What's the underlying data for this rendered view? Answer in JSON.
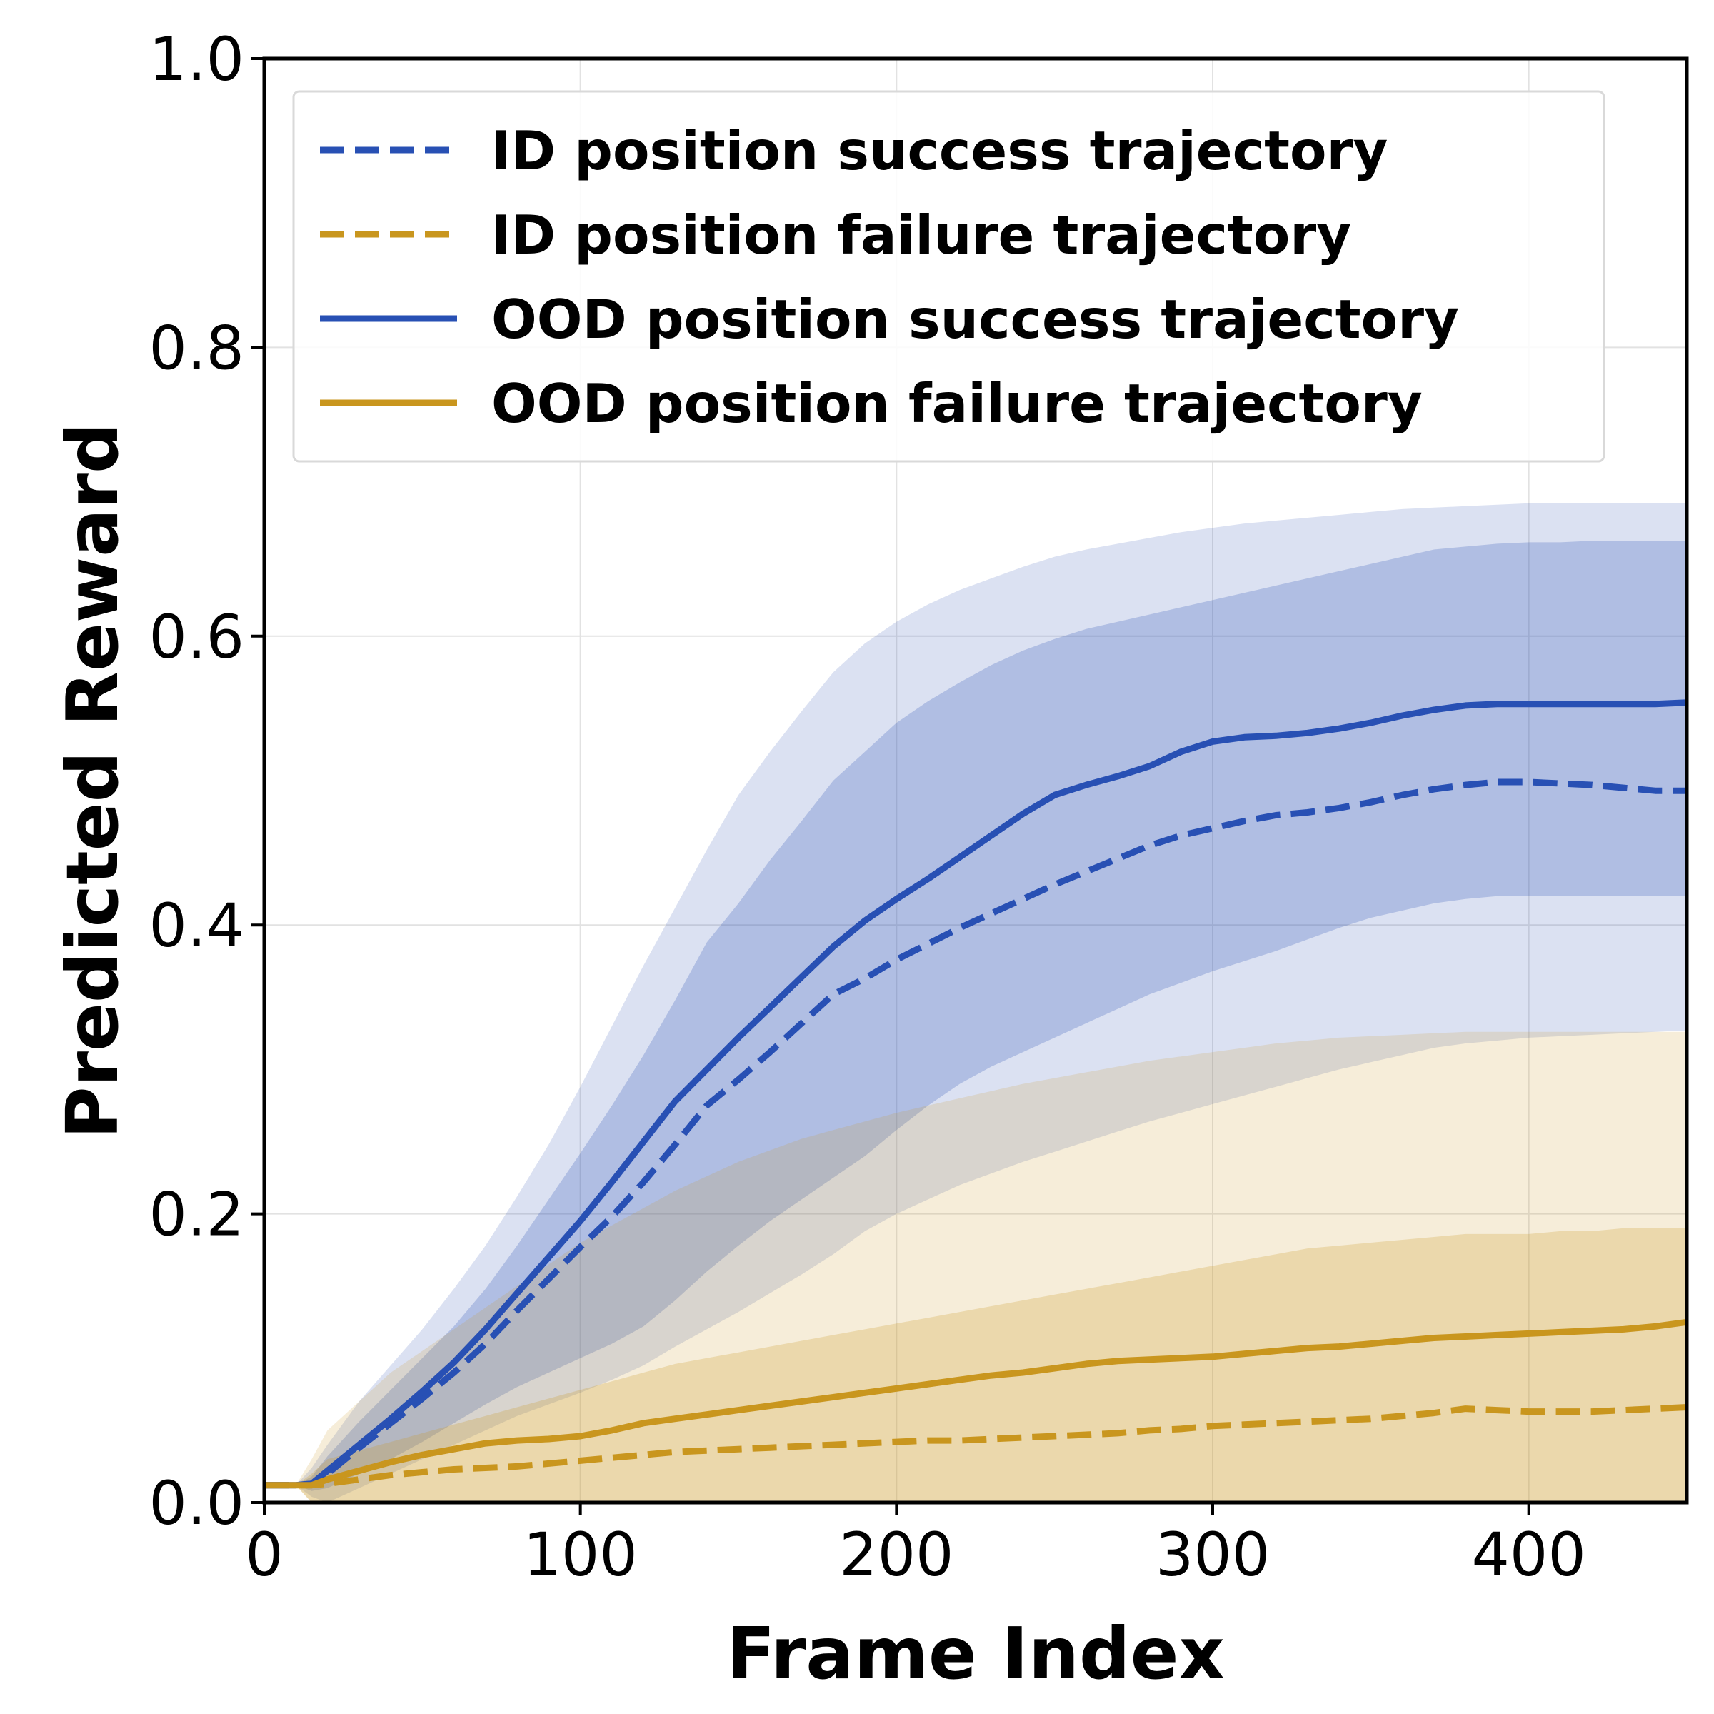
{
  "chart_data": {
    "type": "line",
    "xlabel": "Frame Index",
    "ylabel": "Predicted Reward",
    "xlim": [
      0,
      450
    ],
    "ylim": [
      0.0,
      1.0
    ],
    "xticks": [
      0,
      100,
      200,
      300,
      400
    ],
    "yticks": [
      0.0,
      0.2,
      0.4,
      0.6,
      0.8,
      1.0
    ],
    "xtick_labels": [
      "0",
      "100",
      "200",
      "300",
      "400"
    ],
    "ytick_labels": [
      "0.0",
      "0.2",
      "0.4",
      "0.6",
      "0.8",
      "1.0"
    ],
    "grid": true,
    "legend_position": "upper-left",
    "x": [
      0,
      10,
      15,
      20,
      30,
      40,
      50,
      60,
      70,
      80,
      90,
      100,
      110,
      120,
      130,
      140,
      150,
      160,
      170,
      180,
      190,
      200,
      210,
      220,
      230,
      240,
      250,
      260,
      270,
      280,
      290,
      300,
      310,
      320,
      330,
      340,
      350,
      360,
      370,
      380,
      390,
      400,
      410,
      420,
      430,
      440,
      450
    ],
    "series": [
      {
        "name": "ID position success trajectory",
        "color": "#2850b4",
        "style": "dashed",
        "values": [
          0.012,
          0.012,
          0.013,
          0.02,
          0.038,
          0.055,
          0.072,
          0.09,
          0.11,
          0.133,
          0.155,
          0.177,
          0.198,
          0.222,
          0.248,
          0.275,
          0.293,
          0.312,
          0.332,
          0.352,
          0.363,
          0.376,
          0.387,
          0.398,
          0.408,
          0.418,
          0.428,
          0.437,
          0.446,
          0.455,
          0.462,
          0.467,
          0.472,
          0.476,
          0.478,
          0.481,
          0.485,
          0.49,
          0.494,
          0.497,
          0.499,
          0.499,
          0.498,
          0.497,
          0.495,
          0.493,
          0.493
        ],
        "band_inner": [
          [
            0.012,
            0.012
          ],
          [
            0.012,
            0.012
          ],
          [
            0.008,
            0.018
          ],
          [
            0.01,
            0.032
          ],
          [
            0.02,
            0.056
          ],
          [
            0.03,
            0.078
          ],
          [
            0.042,
            0.1
          ],
          [
            0.055,
            0.122
          ],
          [
            0.068,
            0.148
          ],
          [
            0.08,
            0.178
          ],
          [
            0.09,
            0.21
          ],
          [
            0.1,
            0.242
          ],
          [
            0.11,
            0.275
          ],
          [
            0.122,
            0.31
          ],
          [
            0.14,
            0.348
          ],
          [
            0.16,
            0.388
          ],
          [
            0.178,
            0.415
          ],
          [
            0.195,
            0.445
          ],
          [
            0.21,
            0.472
          ],
          [
            0.225,
            0.5
          ],
          [
            0.24,
            0.52
          ],
          [
            0.258,
            0.54
          ],
          [
            0.275,
            0.555
          ],
          [
            0.29,
            0.568
          ],
          [
            0.302,
            0.58
          ],
          [
            0.312,
            0.59
          ],
          [
            0.322,
            0.598
          ],
          [
            0.332,
            0.605
          ],
          [
            0.342,
            0.61
          ],
          [
            0.352,
            0.615
          ],
          [
            0.36,
            0.62
          ],
          [
            0.368,
            0.625
          ],
          [
            0.375,
            0.63
          ],
          [
            0.382,
            0.635
          ],
          [
            0.39,
            0.64
          ],
          [
            0.398,
            0.645
          ],
          [
            0.405,
            0.65
          ],
          [
            0.41,
            0.655
          ],
          [
            0.415,
            0.66
          ],
          [
            0.418,
            0.662
          ],
          [
            0.42,
            0.664
          ],
          [
            0.42,
            0.665
          ],
          [
            0.42,
            0.665
          ],
          [
            0.42,
            0.666
          ],
          [
            0.42,
            0.666
          ],
          [
            0.42,
            0.666
          ],
          [
            0.42,
            0.666
          ]
        ],
        "band_outer": [
          [
            0.012,
            0.012
          ],
          [
            0.012,
            0.012
          ],
          [
            0.004,
            0.024
          ],
          [
            0.0,
            0.04
          ],
          [
            0.01,
            0.07
          ],
          [
            0.02,
            0.095
          ],
          [
            0.03,
            0.12
          ],
          [
            0.04,
            0.148
          ],
          [
            0.05,
            0.178
          ],
          [
            0.06,
            0.212
          ],
          [
            0.068,
            0.248
          ],
          [
            0.076,
            0.288
          ],
          [
            0.085,
            0.33
          ],
          [
            0.095,
            0.372
          ],
          [
            0.108,
            0.412
          ],
          [
            0.12,
            0.452
          ],
          [
            0.132,
            0.49
          ],
          [
            0.145,
            0.52
          ],
          [
            0.158,
            0.548
          ],
          [
            0.172,
            0.575
          ],
          [
            0.188,
            0.595
          ],
          [
            0.2,
            0.61
          ],
          [
            0.21,
            0.622
          ],
          [
            0.22,
            0.632
          ],
          [
            0.228,
            0.64
          ],
          [
            0.236,
            0.648
          ],
          [
            0.243,
            0.655
          ],
          [
            0.25,
            0.66
          ],
          [
            0.257,
            0.664
          ],
          [
            0.264,
            0.668
          ],
          [
            0.27,
            0.672
          ],
          [
            0.276,
            0.675
          ],
          [
            0.282,
            0.678
          ],
          [
            0.288,
            0.68
          ],
          [
            0.294,
            0.682
          ],
          [
            0.3,
            0.684
          ],
          [
            0.305,
            0.686
          ],
          [
            0.31,
            0.688
          ],
          [
            0.315,
            0.689
          ],
          [
            0.318,
            0.69
          ],
          [
            0.32,
            0.691
          ],
          [
            0.322,
            0.692
          ],
          [
            0.323,
            0.692
          ],
          [
            0.324,
            0.692
          ],
          [
            0.325,
            0.692
          ],
          [
            0.326,
            0.692
          ],
          [
            0.327,
            0.692
          ]
        ]
      },
      {
        "name": "ID position failure trajectory",
        "color": "#c9961e",
        "style": "dashed",
        "values": [
          0.012,
          0.012,
          0.012,
          0.013,
          0.016,
          0.019,
          0.021,
          0.023,
          0.024,
          0.025,
          0.027,
          0.029,
          0.031,
          0.033,
          0.035,
          0.036,
          0.037,
          0.038,
          0.039,
          0.04,
          0.041,
          0.042,
          0.043,
          0.043,
          0.044,
          0.045,
          0.046,
          0.047,
          0.048,
          0.05,
          0.051,
          0.053,
          0.054,
          0.055,
          0.056,
          0.057,
          0.058,
          0.06,
          0.062,
          0.065,
          0.064,
          0.063,
          0.063,
          0.063,
          0.064,
          0.065,
          0.066
        ],
        "band_inner": [
          [
            0.012,
            0.012
          ],
          [
            0.012,
            0.012
          ],
          [
            0.0,
            0.02
          ],
          [
            0.0,
            0.03
          ],
          [
            0.0,
            0.036
          ],
          [
            0.0,
            0.042
          ],
          [
            0.0,
            0.048
          ],
          [
            0.0,
            0.054
          ],
          [
            0.0,
            0.06
          ],
          [
            0.0,
            0.066
          ],
          [
            0.0,
            0.072
          ],
          [
            0.0,
            0.078
          ],
          [
            0.0,
            0.084
          ],
          [
            0.0,
            0.09
          ],
          [
            0.0,
            0.096
          ],
          [
            0.0,
            0.1
          ],
          [
            0.0,
            0.104
          ],
          [
            0.0,
            0.108
          ],
          [
            0.0,
            0.112
          ],
          [
            0.0,
            0.116
          ],
          [
            0.0,
            0.12
          ],
          [
            0.0,
            0.124
          ],
          [
            0.0,
            0.128
          ],
          [
            0.0,
            0.132
          ],
          [
            0.0,
            0.136
          ],
          [
            0.0,
            0.14
          ],
          [
            0.0,
            0.144
          ],
          [
            0.0,
            0.148
          ],
          [
            0.0,
            0.152
          ],
          [
            0.0,
            0.156
          ],
          [
            0.0,
            0.16
          ],
          [
            0.0,
            0.164
          ],
          [
            0.0,
            0.168
          ],
          [
            0.0,
            0.172
          ],
          [
            0.0,
            0.176
          ],
          [
            0.0,
            0.178
          ],
          [
            0.0,
            0.18
          ],
          [
            0.0,
            0.182
          ],
          [
            0.0,
            0.184
          ],
          [
            0.0,
            0.186
          ],
          [
            0.0,
            0.186
          ],
          [
            0.0,
            0.186
          ],
          [
            0.0,
            0.188
          ],
          [
            0.0,
            0.188
          ],
          [
            0.0,
            0.19
          ],
          [
            0.0,
            0.19
          ],
          [
            0.0,
            0.19
          ]
        ],
        "band_outer": [
          [
            0.012,
            0.012
          ],
          [
            0.012,
            0.012
          ],
          [
            0.0,
            0.03
          ],
          [
            0.0,
            0.05
          ],
          [
            0.0,
            0.07
          ],
          [
            0.0,
            0.09
          ],
          [
            0.0,
            0.105
          ],
          [
            0.0,
            0.12
          ],
          [
            0.0,
            0.135
          ],
          [
            0.0,
            0.15
          ],
          [
            0.0,
            0.165
          ],
          [
            0.0,
            0.18
          ],
          [
            0.0,
            0.192
          ],
          [
            0.0,
            0.204
          ],
          [
            0.0,
            0.216
          ],
          [
            0.0,
            0.226
          ],
          [
            0.0,
            0.236
          ],
          [
            0.0,
            0.244
          ],
          [
            0.0,
            0.252
          ],
          [
            0.0,
            0.258
          ],
          [
            0.0,
            0.264
          ],
          [
            0.0,
            0.27
          ],
          [
            0.0,
            0.275
          ],
          [
            0.0,
            0.28
          ],
          [
            0.0,
            0.285
          ],
          [
            0.0,
            0.29
          ],
          [
            0.0,
            0.294
          ],
          [
            0.0,
            0.298
          ],
          [
            0.0,
            0.302
          ],
          [
            0.0,
            0.306
          ],
          [
            0.0,
            0.309
          ],
          [
            0.0,
            0.312
          ],
          [
            0.0,
            0.315
          ],
          [
            0.0,
            0.318
          ],
          [
            0.0,
            0.32
          ],
          [
            0.0,
            0.322
          ],
          [
            0.0,
            0.323
          ],
          [
            0.0,
            0.324
          ],
          [
            0.0,
            0.325
          ],
          [
            0.0,
            0.326
          ],
          [
            0.0,
            0.326
          ],
          [
            0.0,
            0.326
          ],
          [
            0.0,
            0.326
          ],
          [
            0.0,
            0.326
          ],
          [
            0.0,
            0.326
          ],
          [
            0.0,
            0.326
          ],
          [
            0.0,
            0.326
          ]
        ]
      },
      {
        "name": "OOD position success trajectory",
        "color": "#2850b4",
        "style": "solid",
        "values": [
          0.012,
          0.012,
          0.013,
          0.022,
          0.04,
          0.058,
          0.077,
          0.097,
          0.12,
          0.145,
          0.17,
          0.195,
          0.222,
          0.25,
          0.278,
          0.3,
          0.322,
          0.343,
          0.364,
          0.385,
          0.403,
          0.418,
          0.432,
          0.447,
          0.462,
          0.477,
          0.49,
          0.497,
          0.503,
          0.51,
          0.52,
          0.527,
          0.53,
          0.531,
          0.533,
          0.536,
          0.54,
          0.545,
          0.549,
          0.552,
          0.553,
          0.553,
          0.553,
          0.553,
          0.553,
          0.553,
          0.554
        ]
      },
      {
        "name": "OOD position failure trajectory",
        "color": "#c9961e",
        "style": "solid",
        "values": [
          0.012,
          0.012,
          0.012,
          0.016,
          0.022,
          0.028,
          0.033,
          0.037,
          0.041,
          0.043,
          0.044,
          0.046,
          0.05,
          0.055,
          0.058,
          0.061,
          0.064,
          0.067,
          0.07,
          0.073,
          0.076,
          0.079,
          0.082,
          0.085,
          0.088,
          0.09,
          0.093,
          0.096,
          0.098,
          0.099,
          0.1,
          0.101,
          0.103,
          0.105,
          0.107,
          0.108,
          0.11,
          0.112,
          0.114,
          0.115,
          0.116,
          0.117,
          0.118,
          0.119,
          0.12,
          0.122,
          0.125
        ]
      }
    ]
  }
}
